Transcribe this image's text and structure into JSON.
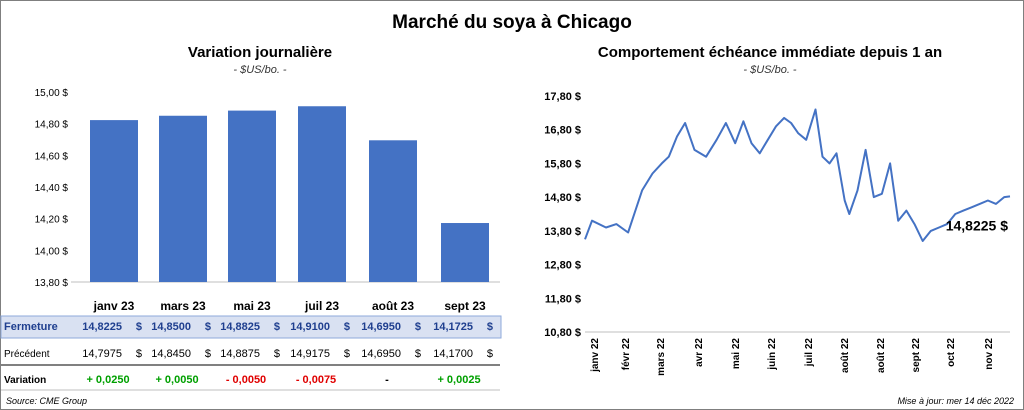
{
  "title": "Marché du soya à Chicago",
  "left": {
    "title": "Variation  journalière",
    "unit": "- $US/bo. -"
  },
  "right": {
    "title": "Comportement  échéance immédiate depuis 1 an",
    "unit": "- $US/bo. -",
    "last_label": "14,8225 $"
  },
  "table": {
    "rows": [
      {
        "label": "Fermeture",
        "values": [
          "14,8225",
          "14,8500",
          "14,8825",
          "14,9100",
          "14,6950",
          "14,1725"
        ]
      },
      {
        "label": "Précédent",
        "values": [
          "14,7975",
          "14,8450",
          "14,8875",
          "14,9175",
          "14,6950",
          "14,1700"
        ]
      },
      {
        "label": "Variation",
        "values": [
          "+ 0,0250",
          "+ 0,0050",
          "- 0,0050",
          "- 0,0075",
          "-",
          "+ 0,0025"
        ]
      }
    ],
    "currency": "$"
  },
  "footer": {
    "source": "Source: CME Group",
    "updated": "Mise à jour: mer 14 déc 2022"
  },
  "colors": {
    "bar": "#4472c4",
    "line": "#4472c4",
    "header_fill": "#d9e1f2",
    "positive": "#00a000",
    "negative": "#e00000"
  },
  "chart_data": [
    {
      "type": "bar",
      "title": "Variation  journalière",
      "categories": [
        "janv 23",
        "mars 23",
        "mai 23",
        "juil 23",
        "août 23",
        "sept 23"
      ],
      "values": [
        14.8225,
        14.85,
        14.8825,
        14.91,
        14.695,
        14.1725
      ],
      "ylim": [
        13.8,
        15.0
      ],
      "yticks": [
        "13,80 $",
        "14,00 $",
        "14,20 $",
        "14,40 $",
        "14,60 $",
        "14,80 $",
        "15,00 $"
      ],
      "grid": false
    },
    {
      "type": "line",
      "title": "Comportement  échéance immédiate depuis 1 an",
      "ylim": [
        10.8,
        17.8
      ],
      "yticks": [
        "10,80 $",
        "11,80 $",
        "12,80 $",
        "13,80 $",
        "14,80 $",
        "15,80 $",
        "16,80 $",
        "17,80 $"
      ],
      "xticks": [
        "janv 22",
        "févr 22",
        "mars 22",
        "avr 22",
        "mai 22",
        "juin 22",
        "juil 22",
        "août 22",
        "août 22",
        "sept 22",
        "oct 22",
        "nov 22"
      ],
      "x": [
        "2021-12-14",
        "2021-12-20",
        "2022-01-01",
        "2022-01-10",
        "2022-01-20",
        "2022-02-01",
        "2022-02-10",
        "2022-02-18",
        "2022-02-24",
        "2022-03-03",
        "2022-03-10",
        "2022-03-18",
        "2022-03-28",
        "2022-04-06",
        "2022-04-14",
        "2022-04-22",
        "2022-04-29",
        "2022-05-06",
        "2022-05-13",
        "2022-05-20",
        "2022-05-27",
        "2022-06-03",
        "2022-06-09",
        "2022-06-15",
        "2022-06-22",
        "2022-06-30",
        "2022-07-06",
        "2022-07-12",
        "2022-07-18",
        "2022-07-25",
        "2022-07-29",
        "2022-08-05",
        "2022-08-12",
        "2022-08-19",
        "2022-08-26",
        "2022-09-02",
        "2022-09-09",
        "2022-09-16",
        "2022-09-23",
        "2022-09-30",
        "2022-10-07",
        "2022-10-14",
        "2022-10-21",
        "2022-10-28",
        "2022-11-04",
        "2022-11-11",
        "2022-11-18",
        "2022-11-25",
        "2022-12-02",
        "2022-12-09",
        "2022-12-14"
      ],
      "values": [
        13.55,
        14.1,
        13.9,
        14.0,
        13.75,
        15.0,
        15.5,
        15.8,
        16.0,
        16.6,
        17.0,
        16.2,
        16.0,
        16.5,
        17.0,
        16.4,
        17.05,
        16.4,
        16.1,
        16.5,
        16.9,
        17.15,
        17.0,
        16.7,
        16.5,
        17.4,
        16.0,
        15.8,
        16.1,
        14.7,
        14.3,
        15.0,
        16.2,
        14.8,
        14.9,
        15.8,
        14.1,
        14.4,
        14.0,
        13.5,
        13.8,
        13.9,
        14.0,
        14.3,
        14.4,
        14.5,
        14.6,
        14.7,
        14.6,
        14.8,
        14.8225
      ]
    }
  ]
}
